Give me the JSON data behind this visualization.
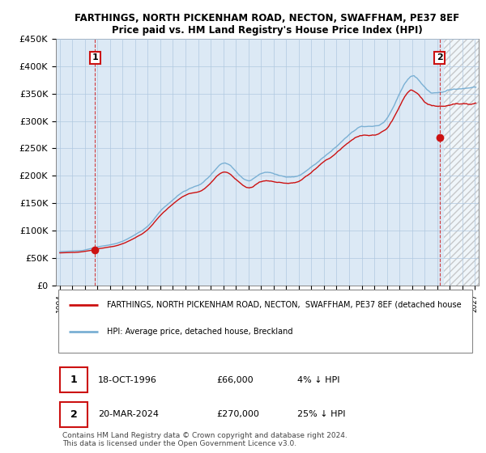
{
  "title_line1": "FARTHINGS, NORTH PICKENHAM ROAD, NECTON, SWAFFHAM, PE37 8EF",
  "title_line2": "Price paid vs. HM Land Registry's House Price Index (HPI)",
  "ylim": [
    0,
    450000
  ],
  "ytick_labels": [
    "£0",
    "£50K",
    "£100K",
    "£150K",
    "£200K",
    "£250K",
    "£300K",
    "£350K",
    "£400K",
    "£450K"
  ],
  "ytick_values": [
    0,
    50000,
    100000,
    150000,
    200000,
    250000,
    300000,
    350000,
    400000,
    450000
  ],
  "xlim_start": 1993.7,
  "xlim_end": 2027.3,
  "hatch_start": 2024.5,
  "xticks": [
    1994,
    1995,
    1996,
    1997,
    1998,
    1999,
    2000,
    2001,
    2002,
    2003,
    2004,
    2005,
    2006,
    2007,
    2008,
    2009,
    2010,
    2011,
    2012,
    2013,
    2014,
    2015,
    2016,
    2017,
    2018,
    2019,
    2020,
    2021,
    2022,
    2023,
    2024,
    2025,
    2026,
    2027
  ],
  "sale1_year": 1996.8,
  "sale1_price": 66000,
  "sale2_year": 2024.2,
  "sale2_price": 270000,
  "hpi_color": "#7ab0d4",
  "price_color": "#cc1111",
  "dot_color": "#cc1111",
  "bg_color": "#dce9f5",
  "grid_color": "#b0c8e0",
  "annotation_box_color": "#cc1111",
  "legend_line1": "FARTHINGS, NORTH PICKENHAM ROAD, NECTON,  SWAFFHAM, PE37 8EF (detached house",
  "legend_line2": "HPI: Average price, detached house, Breckland",
  "table_row1": [
    "1",
    "18-OCT-1996",
    "£66,000",
    "4% ↓ HPI"
  ],
  "table_row2": [
    "2",
    "20-MAR-2024",
    "£270,000",
    "25% ↓ HPI"
  ],
  "footer": "Contains HM Land Registry data © Crown copyright and database right 2024.\nThis data is licensed under the Open Government Licence v3.0."
}
